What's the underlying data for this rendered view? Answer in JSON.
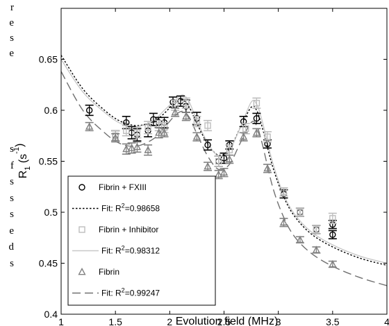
{
  "page_text": {
    "fragments_top": [
      "r",
      "e",
      "s",
      "e"
    ],
    "fragments_bottom": [
      "s",
      "f",
      "s",
      "s",
      "s",
      "e",
      "d",
      "s"
    ]
  },
  "chart_data": {
    "type": "scatter",
    "xlabel": "Evolution field (MHz)",
    "ylabel": "R",
    "ylabel_sub": "1",
    "ylabel_unit": "(s",
    "ylabel_unit_sup": "-1",
    "ylabel_unit_close": ")",
    "xlim": [
      1,
      4
    ],
    "ylim": [
      0.4,
      0.7
    ],
    "xticks": [
      1,
      1.5,
      2,
      2.5,
      3,
      3.5,
      4
    ],
    "xtick_labels": [
      "1",
      "1.5",
      "2",
      "2.5",
      "3",
      "3.5",
      "4"
    ],
    "yticks": [
      0.4,
      0.45,
      0.5,
      0.55,
      0.6,
      0.65
    ],
    "ytick_labels": [
      "0.4",
      "0.45",
      "0.5",
      "0.55",
      "0.6",
      "0.65"
    ],
    "grid": false,
    "legend_position": "bottom-left",
    "series": [
      {
        "name": "Fibrin + FXIII",
        "marker": "circle",
        "color": "#000000",
        "x": [
          1.26,
          1.5,
          1.6,
          1.65,
          1.7,
          1.8,
          1.85,
          1.9,
          1.95,
          2.03,
          2.1,
          2.15,
          2.25,
          2.35,
          2.45,
          2.5,
          2.55,
          2.68,
          2.8,
          2.9,
          3.05,
          3.2,
          3.35,
          3.5,
          3.5
        ],
        "y": [
          0.6,
          0.575,
          0.588,
          0.578,
          0.576,
          0.58,
          0.591,
          0.588,
          0.588,
          0.608,
          0.609,
          0.604,
          0.592,
          0.566,
          0.55,
          0.553,
          0.566,
          0.589,
          0.592,
          0.567,
          0.518,
          0.5,
          0.483,
          0.488,
          0.478
        ],
        "err": [
          0.005,
          0.005,
          0.006,
          0.006,
          0.006,
          0.006,
          0.006,
          0.005,
          0.005,
          0.005,
          0.005,
          0.006,
          0.006,
          0.005,
          0.005,
          0.005,
          0.004,
          0.005,
          0.005,
          0.004,
          0.004,
          0.004,
          0.004,
          0.004,
          0.004
        ]
      },
      {
        "name": "Fibrin + Inhibitor",
        "marker": "square",
        "color": "#bdbdbd",
        "x": [
          1.5,
          1.6,
          1.7,
          1.8,
          1.9,
          1.95,
          2.05,
          2.15,
          2.25,
          2.35,
          2.45,
          2.55,
          2.7,
          2.8,
          2.9,
          3.05,
          3.2,
          3.35,
          3.5
        ],
        "y": [
          0.575,
          0.58,
          0.578,
          0.583,
          0.585,
          0.583,
          0.605,
          0.607,
          0.589,
          0.585,
          0.55,
          0.561,
          0.582,
          0.607,
          0.574,
          0.52,
          0.5,
          0.483,
          0.494
        ],
        "err": [
          0.005,
          0.005,
          0.005,
          0.006,
          0.005,
          0.005,
          0.005,
          0.005,
          0.005,
          0.005,
          0.005,
          0.005,
          0.005,
          0.005,
          0.005,
          0.004,
          0.004,
          0.004,
          0.005
        ]
      },
      {
        "name": "Fibrin",
        "marker": "triangle",
        "color": "#808080",
        "x": [
          1.26,
          1.5,
          1.6,
          1.65,
          1.7,
          1.8,
          1.9,
          1.95,
          2.05,
          2.15,
          2.25,
          2.35,
          2.45,
          2.5,
          2.55,
          2.68,
          2.8,
          2.9,
          3.05,
          3.2,
          3.35,
          3.5
        ],
        "y": [
          0.584,
          0.573,
          0.562,
          0.563,
          0.564,
          0.561,
          0.578,
          0.578,
          0.598,
          0.594,
          0.574,
          0.545,
          0.537,
          0.539,
          0.552,
          0.574,
          0.578,
          0.543,
          0.49,
          0.473,
          0.463,
          0.449
        ],
        "err": [
          0.004,
          0.004,
          0.005,
          0.005,
          0.005,
          0.005,
          0.005,
          0.004,
          0.004,
          0.004,
          0.004,
          0.004,
          0.004,
          0.004,
          0.004,
          0.004,
          0.004,
          0.004,
          0.004,
          0.003,
          0.003,
          0.003
        ]
      }
    ],
    "fits": [
      {
        "name": "Fit: R",
        "name_sup": "2",
        "name_rest": "=0.98658",
        "style": "dotted",
        "color": "#000000",
        "x": [
          1,
          1.2,
          1.4,
          1.55,
          1.7,
          1.85,
          1.95,
          2.05,
          2.12,
          2.18,
          2.25,
          2.35,
          2.45,
          2.55,
          2.65,
          2.75,
          2.8,
          2.85,
          2.95,
          3.05,
          3.15,
          3.3,
          3.5,
          3.75,
          4
        ],
        "y": [
          0.654,
          0.621,
          0.6,
          0.589,
          0.585,
          0.589,
          0.597,
          0.608,
          0.61,
          0.603,
          0.587,
          0.567,
          0.556,
          0.562,
          0.583,
          0.603,
          0.6,
          0.584,
          0.544,
          0.515,
          0.496,
          0.479,
          0.466,
          0.455,
          0.448
        ]
      },
      {
        "name": "Fit: R",
        "name_sup": "2",
        "name_rest": "=0.98312",
        "style": "solid",
        "color": "#c8c8c8",
        "x": [
          1,
          1.2,
          1.4,
          1.55,
          1.7,
          1.85,
          1.95,
          2.05,
          2.12,
          2.18,
          2.25,
          2.35,
          2.45,
          2.55,
          2.65,
          2.75,
          2.8,
          2.85,
          2.95,
          3.05,
          3.15,
          3.3,
          3.5,
          3.75,
          4
        ],
        "y": [
          0.65,
          0.618,
          0.598,
          0.587,
          0.584,
          0.59,
          0.6,
          0.61,
          0.615,
          0.608,
          0.59,
          0.568,
          0.555,
          0.561,
          0.583,
          0.608,
          0.606,
          0.59,
          0.548,
          0.517,
          0.498,
          0.481,
          0.468,
          0.457,
          0.45
        ]
      },
      {
        "name": "Fit: R",
        "name_sup": "2",
        "name_rest": "=0.99247",
        "style": "dashed",
        "color": "#707070",
        "x": [
          1,
          1.2,
          1.4,
          1.55,
          1.7,
          1.85,
          1.95,
          2.05,
          2.12,
          2.18,
          2.25,
          2.35,
          2.45,
          2.55,
          2.65,
          2.75,
          2.8,
          2.85,
          2.95,
          3.05,
          3.15,
          3.3,
          3.5,
          3.75,
          4
        ],
        "y": [
          0.638,
          0.6,
          0.578,
          0.567,
          0.565,
          0.572,
          0.583,
          0.595,
          0.599,
          0.593,
          0.577,
          0.555,
          0.542,
          0.547,
          0.568,
          0.588,
          0.585,
          0.568,
          0.524,
          0.495,
          0.476,
          0.46,
          0.447,
          0.436,
          0.428
        ]
      }
    ],
    "legend_items": [
      {
        "type": "marker",
        "marker": "circle",
        "color": "#000000",
        "name": "Fibrin + FXIII"
      },
      {
        "type": "line",
        "style": "dotted",
        "color": "#000000",
        "fit": 0
      },
      {
        "type": "marker",
        "marker": "square",
        "color": "#bdbdbd",
        "name": "Fibrin + Inhibitor"
      },
      {
        "type": "line",
        "style": "solid",
        "color": "#c8c8c8",
        "fit": 1
      },
      {
        "type": "marker",
        "marker": "triangle",
        "color": "#808080",
        "name": "Fibrin"
      },
      {
        "type": "line",
        "style": "dashed",
        "color": "#707070",
        "fit": 2
      }
    ]
  }
}
